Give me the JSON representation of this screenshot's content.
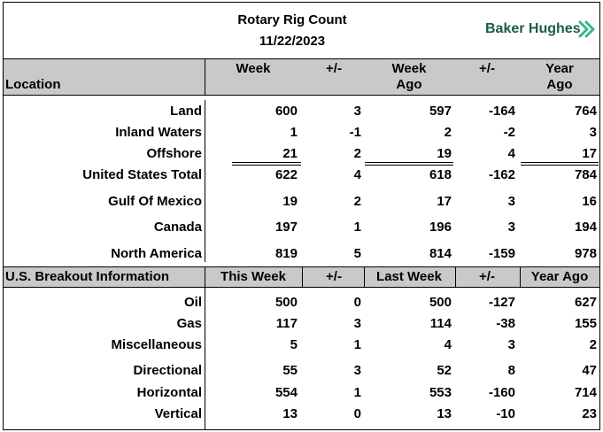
{
  "header": {
    "title": "Rotary Rig Count",
    "date": "11/22/2023",
    "brand": "Baker Hughes",
    "brand_color": "#1a5e3f",
    "brand_icon_color": "#3bb58a"
  },
  "section1": {
    "col_location": "Location",
    "col_week": "Week",
    "col_pm1": "+/-",
    "col_week_ago_1": "Week",
    "col_week_ago_2": "Ago",
    "col_pm2": "+/-",
    "col_year_ago_1": "Year",
    "col_year_ago_2": "Ago",
    "rows": [
      {
        "label": "Land",
        "week": "600",
        "chg": "3",
        "week_ago": "597",
        "chg_y": "-164",
        "year_ago": "764"
      },
      {
        "label": "Inland Waters",
        "week": "1",
        "chg": "-1",
        "week_ago": "2",
        "chg_y": "-2",
        "year_ago": "3"
      },
      {
        "label": "Offshore",
        "week": "21",
        "chg": "2",
        "week_ago": "19",
        "chg_y": "4",
        "year_ago": "17"
      },
      {
        "label": "United States Total",
        "week": "622",
        "chg": "4",
        "week_ago": "618",
        "chg_y": "-162",
        "year_ago": "784"
      },
      {
        "label": "Gulf Of Mexico",
        "week": "19",
        "chg": "2",
        "week_ago": "17",
        "chg_y": "3",
        "year_ago": "16"
      },
      {
        "label": "Canada",
        "week": "197",
        "chg": "1",
        "week_ago": "196",
        "chg_y": "3",
        "year_ago": "194"
      },
      {
        "label": "North America",
        "week": "819",
        "chg": "5",
        "week_ago": "814",
        "chg_y": "-159",
        "year_ago": "978"
      }
    ]
  },
  "section2": {
    "col_info": "U.S. Breakout Information",
    "col_this_week": "This Week",
    "col_pm1": "+/-",
    "col_last_week": "Last Week",
    "col_pm2": "+/-",
    "col_year_ago": "Year Ago",
    "rows": [
      {
        "label": "Oil",
        "week": "500",
        "chg": "0",
        "week_ago": "500",
        "chg_y": "-127",
        "year_ago": "627"
      },
      {
        "label": "Gas",
        "week": "117",
        "chg": "3",
        "week_ago": "114",
        "chg_y": "-38",
        "year_ago": "155"
      },
      {
        "label": "Miscellaneous",
        "week": "5",
        "chg": "1",
        "week_ago": "4",
        "chg_y": "3",
        "year_ago": "2"
      },
      {
        "label": "Directional",
        "week": "55",
        "chg": "3",
        "week_ago": "52",
        "chg_y": "8",
        "year_ago": "47"
      },
      {
        "label": "Horizontal",
        "week": "554",
        "chg": "1",
        "week_ago": "553",
        "chg_y": "-160",
        "year_ago": "714"
      },
      {
        "label": "Vertical",
        "week": "13",
        "chg": "0",
        "week_ago": "13",
        "chg_y": "-10",
        "year_ago": "23"
      }
    ]
  }
}
